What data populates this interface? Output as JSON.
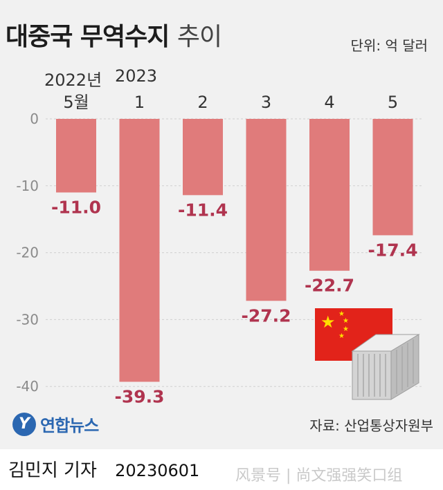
{
  "header": {
    "title_bold": "대중국 무역수지",
    "title_light": "추이",
    "unit": "단위: 억 달러",
    "year_2022": "2022년",
    "year_2023": "2023"
  },
  "chart_data": {
    "type": "bar",
    "title": "대중국 무역수지 추이",
    "categories": [
      "5월",
      "1",
      "2",
      "3",
      "4",
      "5"
    ],
    "values": [
      -11.0,
      -39.3,
      -11.4,
      -27.2,
      -22.7,
      -17.4
    ],
    "value_labels": [
      "-11.0",
      "-39.3",
      "-11.4",
      "-27.2",
      "-22.7",
      "-17.4"
    ],
    "y_ticks": [
      "0",
      "-10",
      "-20",
      "-30",
      "-40"
    ],
    "ylim": [
      -42,
      0
    ],
    "bar_color": "#e07b7b",
    "label_color": "#b0344f",
    "grid": true
  },
  "footer": {
    "logo_text": "연합뉴스",
    "source": "자료: 산업통상자원부",
    "reporter": "김민지 기자",
    "date": "20230601",
    "watermark": "风景号 | 尚文强强笑口组"
  },
  "colors": {
    "panel": "#f1f1f1",
    "flag_red": "#e2231a",
    "flag_star": "#ffde00",
    "logo_blue": "#2b67b1"
  },
  "icons": [
    "yonhap-logo-icon",
    "china-flag-icon",
    "shipping-container-icon"
  ]
}
